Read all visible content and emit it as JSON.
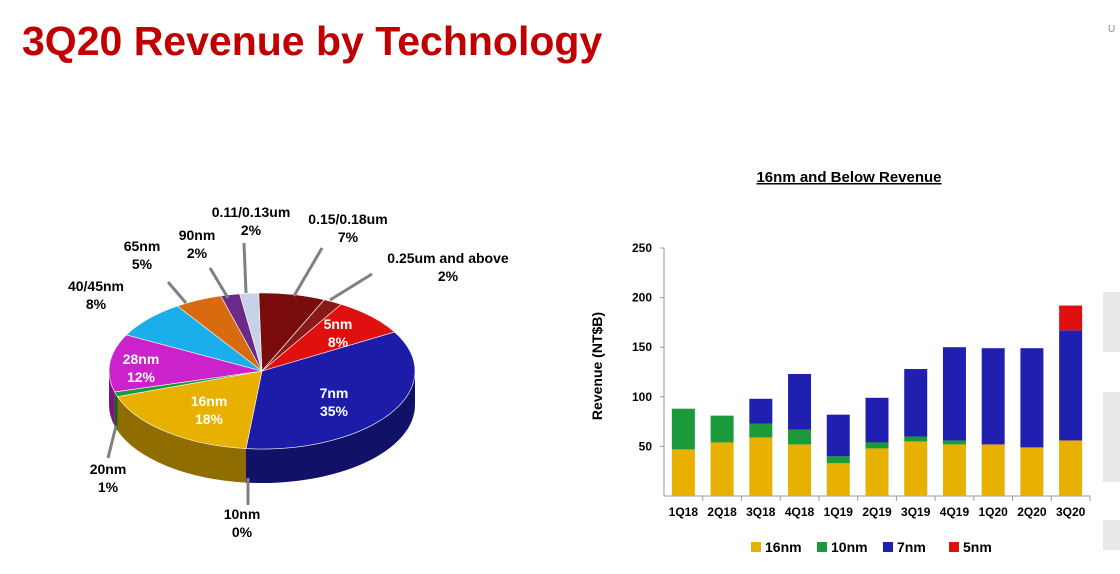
{
  "slide": {
    "title": "3Q20 Revenue by Technology",
    "corner_mark": "U"
  },
  "chart_data": [
    {
      "type": "pie",
      "title": "",
      "slices": [
        {
          "label": "7nm",
          "value": "35%",
          "pct": 35,
          "color": "#1c1ca8"
        },
        {
          "label": "10nm",
          "value": "0%",
          "pct": 0,
          "color": "#1a9a3a"
        },
        {
          "label": "16nm",
          "value": "18%",
          "pct": 18,
          "color": "#e8b000"
        },
        {
          "label": "20nm",
          "value": "1%",
          "pct": 1,
          "color": "#1a9a3a"
        },
        {
          "label": "28nm",
          "value": "12%",
          "pct": 12,
          "color": "#cc22cc"
        },
        {
          "label": "40/45nm",
          "value": "8%",
          "pct": 8,
          "color": "#1aaeea"
        },
        {
          "label": "65nm",
          "value": "5%",
          "pct": 5,
          "color": "#d86a10"
        },
        {
          "label": "90nm",
          "value": "2%",
          "pct": 2,
          "color": "#6a2a8a"
        },
        {
          "label": "0.11/0.13um",
          "value": "2%",
          "pct": 2,
          "color": "#c7d2e6"
        },
        {
          "label": "0.15/0.18um",
          "value": "7%",
          "pct": 7,
          "color": "#7a0c0c"
        },
        {
          "label": "0.25um and above",
          "value": "2%",
          "pct": 2,
          "color": "#8a1a1a"
        },
        {
          "label": "5nm",
          "value": "8%",
          "pct": 8,
          "color": "#e01010"
        }
      ]
    },
    {
      "type": "bar",
      "stacked": true,
      "title": "16nm and Below Revenue",
      "xlabel": "",
      "ylabel": "Revenue (NT$B)",
      "ylim": [
        0,
        250
      ],
      "yticks": [
        50,
        100,
        150,
        200,
        250
      ],
      "categories": [
        "1Q18",
        "2Q18",
        "3Q18",
        "4Q18",
        "1Q19",
        "2Q19",
        "3Q19",
        "4Q19",
        "1Q20",
        "2Q20",
        "3Q20"
      ],
      "series": [
        {
          "name": "16nm",
          "color": "#e8b000",
          "values": [
            47,
            54,
            59,
            52,
            33,
            48,
            55,
            52,
            52,
            49,
            56
          ]
        },
        {
          "name": "10nm",
          "color": "#1a9a3a",
          "values": [
            41,
            27,
            14,
            15,
            7,
            6,
            5,
            4,
            0,
            0,
            0
          ]
        },
        {
          "name": "7nm",
          "color": "#2020b0",
          "values": [
            0,
            0,
            25,
            56,
            42,
            45,
            68,
            94,
            97,
            100,
            111
          ]
        },
        {
          "name": "5nm",
          "color": "#e01010",
          "values": [
            0,
            0,
            0,
            0,
            0,
            0,
            0,
            0,
            0,
            0,
            25
          ]
        }
      ],
      "legend_position": "bottom"
    }
  ]
}
